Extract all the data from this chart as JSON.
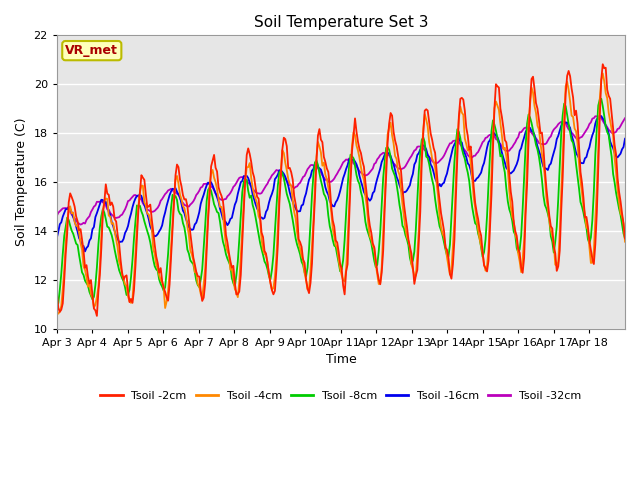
{
  "title": "Soil Temperature Set 3",
  "xlabel": "Time",
  "ylabel": "Soil Temperature (C)",
  "ylim": [
    10,
    22
  ],
  "yticks": [
    10,
    12,
    14,
    16,
    18,
    20,
    22
  ],
  "date_labels": [
    "Apr 3",
    "Apr 4",
    "Apr 5",
    "Apr 6",
    "Apr 7",
    "Apr 8",
    "Apr 9",
    "Apr 10",
    "Apr 11",
    "Apr 12",
    "Apr 13",
    "Apr 14",
    "Apr 15",
    "Apr 16",
    "Apr 17",
    "Apr 18"
  ],
  "colors": {
    "Tsoil -2cm": "#FF2000",
    "Tsoil -4cm": "#FF8800",
    "Tsoil -8cm": "#00CC00",
    "Tsoil -16cm": "#0000EE",
    "Tsoil -32cm": "#BB00BB"
  },
  "bg_color": "#E6E6E6",
  "annotation_text": "VR_met",
  "annotation_bg": "#FFFFBB",
  "annotation_border": "#BBBB00"
}
